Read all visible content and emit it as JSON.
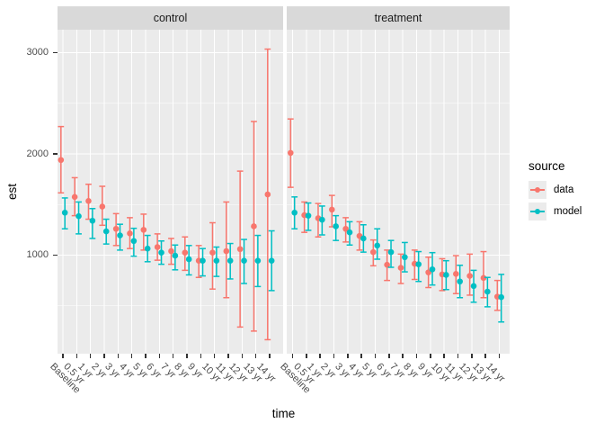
{
  "chart_data": {
    "type": "pointrange",
    "title": "",
    "xlabel": "time",
    "ylabel": "est",
    "grid": "on",
    "panel_background": "#EBEBEB",
    "strip_background": "#D9D9D9",
    "gridline_color": "#FFFFFF",
    "axis_text_color": "#4D4D4D",
    "y_ticks": [
      1000,
      2000,
      3000
    ],
    "y_minor": [
      500,
      1500,
      2500
    ],
    "y_range_shown": [
      30,
      3220
    ],
    "categories": [
      "Baseline",
      "0.5 yr",
      "1 yr",
      "2 yr",
      "3 yr",
      "4 yr",
      "5 yr",
      "6 yr",
      "7 yr",
      "8 yr",
      "9 yr",
      "10 yr",
      "11 yr",
      "12 yr",
      "13 yr",
      "14 yr"
    ],
    "legend": {
      "title": "source",
      "position": "right",
      "entries": [
        {
          "label": "data",
          "color": "#F8766D"
        },
        {
          "label": "model",
          "color": "#00BFC4"
        }
      ]
    },
    "facets": [
      {
        "label": "control",
        "series": [
          {
            "name": "data",
            "color": "#F8766D",
            "est": [
              1940,
              1575,
              1535,
              1480,
              1260,
              1215,
              1250,
              1080,
              1040,
              1025,
              945,
              1025,
              1040,
              1060,
              1285,
              1600
            ],
            "lo": [
              1615,
              1390,
              1355,
              1295,
              1095,
              1065,
              1050,
              950,
              910,
              850,
              780,
              665,
              580,
              290,
              250,
              165
            ],
            "hi": [
              2270,
              1765,
              1700,
              1680,
              1410,
              1370,
              1405,
              1210,
              1165,
              1180,
              1095,
              1320,
              1525,
              1830,
              2320,
              3035
            ]
          },
          {
            "name": "model",
            "color": "#00BFC4",
            "est": [
              1420,
              1385,
              1340,
              1235,
              1195,
              1140,
              1065,
              1025,
              995,
              960,
              945,
              945,
              945,
              945,
              945,
              945
            ],
            "lo": [
              1260,
              1210,
              1165,
              1110,
              1050,
              990,
              935,
              910,
              855,
              805,
              795,
              790,
              765,
              720,
              690,
              650
            ],
            "hi": [
              1565,
              1525,
              1460,
              1355,
              1305,
              1265,
              1195,
              1140,
              1100,
              1095,
              1065,
              1080,
              1115,
              1155,
              1195,
              1240
            ]
          }
        ]
      },
      {
        "label": "treatment",
        "series": [
          {
            "name": "data",
            "color": "#F8766D",
            "est": [
              2010,
              1395,
              1365,
              1450,
              1260,
              1190,
              1030,
              905,
              875,
              915,
              830,
              810,
              815,
              795,
              775,
              590
            ],
            "lo": [
              1670,
              1225,
              1180,
              1280,
              1130,
              1050,
              895,
              750,
              720,
              760,
              680,
              650,
              620,
              605,
              580,
              455
            ],
            "hi": [
              2345,
              1525,
              1510,
              1590,
              1370,
              1330,
              1150,
              1050,
              1010,
              1050,
              980,
              965,
              995,
              1010,
              1035,
              750
            ]
          },
          {
            "name": "model",
            "color": "#00BFC4",
            "est": [
              1420,
              1390,
              1350,
              1285,
              1225,
              1165,
              1095,
              1030,
              980,
              910,
              860,
              805,
              740,
              695,
              640,
              585
            ],
            "lo": [
              1260,
              1245,
              1200,
              1145,
              1100,
              1030,
              960,
              880,
              835,
              740,
              705,
              660,
              580,
              535,
              490,
              340
            ],
            "hi": [
              1575,
              1515,
              1485,
              1390,
              1330,
              1300,
              1260,
              1145,
              1125,
              1035,
              1025,
              945,
              900,
              850,
              780,
              810
            ]
          }
        ]
      }
    ]
  }
}
